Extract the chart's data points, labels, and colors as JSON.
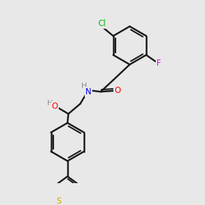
{
  "bg_color": "#e8e8e8",
  "bond_color": "#1a1a1a",
  "bond_width": 1.8,
  "atom_colors": {
    "Cl": "#00bb00",
    "F": "#dd00dd",
    "O": "#ff0000",
    "N": "#0000ee",
    "S": "#ccaa00",
    "HO_color": "#ff0000",
    "H_color": "#888888"
  },
  "figsize": [
    3.0,
    3.0
  ],
  "dpi": 100
}
